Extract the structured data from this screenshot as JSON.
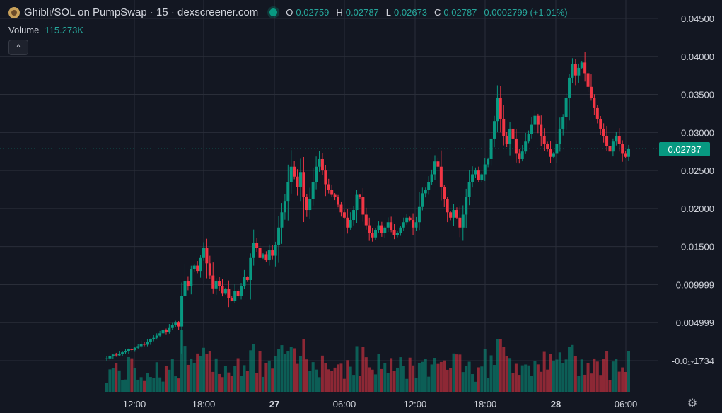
{
  "header": {
    "title": "Ghibli/SOL on PumpSwap · 15 · dexscreener.com",
    "ohlc": [
      {
        "key": "O",
        "value": "0.02759"
      },
      {
        "key": "H",
        "value": "0.02787"
      },
      {
        "key": "L",
        "value": "0.02673"
      },
      {
        "key": "C",
        "value": "0.02787"
      }
    ],
    "change": "0.0002799 (+1.01%)"
  },
  "volume": {
    "label": "Volume",
    "value": "115.273K"
  },
  "icons": {
    "token": "ghibli-token-icon",
    "collapse": "chevron-up-icon",
    "settings": "gear-icon"
  },
  "collapse_label": "^",
  "last_price_tag": "0.02787",
  "settings_glyph": "⚙",
  "colors": {
    "up": "#089981",
    "down": "#f23645",
    "background": "#131722",
    "grid": "#2a2e39",
    "text": "#d1d4dc"
  },
  "chart_data": {
    "type": "candlestick",
    "price_axis_labels": [
      "0.04500",
      "0.04000",
      "0.03500",
      "0.03000",
      "0.02500",
      "0.02000",
      "0.01500",
      "0.009999",
      "0.004999",
      "-0.0₁₇1734"
    ],
    "price_axis_values": [
      0.045,
      0.04,
      0.035,
      0.03,
      0.025,
      0.02,
      0.015,
      0.01,
      0.005,
      0.0
    ],
    "time_axis_labels": [
      "12:00",
      "18:00",
      "27",
      "06:00",
      "12:00",
      "18:00",
      "28",
      "06:00"
    ],
    "bold_time_labels": [
      "27",
      "28"
    ],
    "last_price": 0.02787,
    "price_range": [
      -0.0025,
      0.0455
    ],
    "candles_close_path": [
      0.0003,
      0.0006,
      0.0008,
      0.0007,
      0.0009,
      0.0011,
      0.0013,
      0.0015,
      0.0014,
      0.0017,
      0.0019,
      0.0022,
      0.0021,
      0.0025,
      0.0028,
      0.003,
      0.0033,
      0.0036,
      0.004,
      0.0038,
      0.0043,
      0.0047,
      0.005,
      0.0045,
      0.0085,
      0.0105,
      0.0098,
      0.012,
      0.0125,
      0.0118,
      0.0135,
      0.0148,
      0.0128,
      0.0112,
      0.0095,
      0.0105,
      0.0098,
      0.0088,
      0.0094,
      0.0082,
      0.0079,
      0.0092,
      0.0085,
      0.0098,
      0.011,
      0.0106,
      0.0135,
      0.0155,
      0.0148,
      0.0135,
      0.014,
      0.0132,
      0.0145,
      0.0138,
      0.0152,
      0.0175,
      0.0195,
      0.021,
      0.0235,
      0.0255,
      0.0242,
      0.0228,
      0.0248,
      0.0215,
      0.0198,
      0.0212,
      0.0235,
      0.0255,
      0.0265,
      0.025,
      0.0232,
      0.0225,
      0.0218,
      0.0215,
      0.0205,
      0.0195,
      0.0188,
      0.0175,
      0.0185,
      0.0198,
      0.0218,
      0.0215,
      0.0192,
      0.0178,
      0.0168,
      0.0162,
      0.0172,
      0.0178,
      0.0168,
      0.0175,
      0.0182,
      0.0172,
      0.0165,
      0.0168,
      0.0175,
      0.0182,
      0.0188,
      0.0185,
      0.0175,
      0.0182,
      0.0202,
      0.022,
      0.0225,
      0.0235,
      0.0245,
      0.0262,
      0.0255,
      0.0228,
      0.0212,
      0.0195,
      0.0188,
      0.0198,
      0.0188,
      0.0175,
      0.0192,
      0.0215,
      0.0235,
      0.0245,
      0.025,
      0.0238,
      0.0245,
      0.0258,
      0.0265,
      0.0292,
      0.0315,
      0.0345,
      0.0318,
      0.0295,
      0.0285,
      0.0305,
      0.0292,
      0.0272,
      0.0265,
      0.0275,
      0.0288,
      0.0298,
      0.031,
      0.0322,
      0.031,
      0.0295,
      0.0285,
      0.0278,
      0.0268,
      0.0272,
      0.0285,
      0.0305,
      0.032,
      0.0345,
      0.0372,
      0.039,
      0.0375,
      0.0385,
      0.0392,
      0.0378,
      0.036,
      0.0345,
      0.0332,
      0.0318,
      0.0305,
      0.0295,
      0.0282,
      0.0275,
      0.0288,
      0.0295,
      0.0285,
      0.0272,
      0.0268,
      0.0279
    ]
  }
}
